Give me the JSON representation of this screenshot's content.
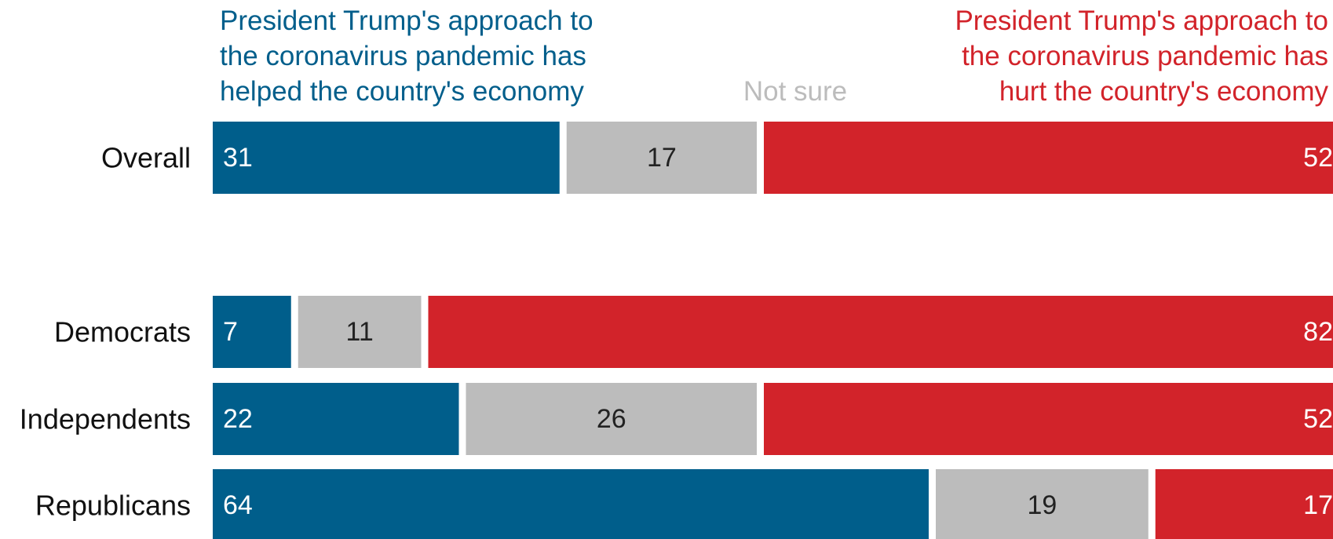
{
  "chart_data": {
    "type": "bar",
    "orientation": "horizontal",
    "stacked": true,
    "categories": [
      "Overall",
      "Democrats",
      "Independents",
      "Republicans"
    ],
    "series": [
      {
        "name": "President Trump's approach to the coronavirus pandemic has helped the country's economy",
        "values": [
          31,
          7,
          22,
          64
        ],
        "color": "#005e8b"
      },
      {
        "name": "Not sure",
        "values": [
          17,
          11,
          26,
          19
        ],
        "color": "#bcbcbc"
      },
      {
        "name": "President Trump's approach to the coronavirus pandemic has hurt the country's economy",
        "values": [
          52,
          82,
          52,
          17
        ],
        "color": "#d2232a"
      }
    ],
    "data_labels": [
      [
        "31",
        "17",
        "52"
      ],
      [
        "7",
        "11",
        "82"
      ],
      [
        "22",
        "26",
        "52"
      ],
      [
        "64",
        "19",
        "17"
      ]
    ],
    "xlim": [
      0,
      100
    ],
    "grid": false,
    "legend": "top",
    "header_lines": {
      "left": [
        "President Trump's approach to",
        "the coronavirus pandemic has",
        "helped the country's economy"
      ],
      "middle": [
        "Not sure"
      ],
      "right": [
        "President Trump's approach to",
        "the coronavirus pandemic has",
        "hurt the country's economy"
      ]
    },
    "label_colors": {
      "on_dark": "#ffffff",
      "on_light": "#222222",
      "category": "#111111"
    }
  }
}
